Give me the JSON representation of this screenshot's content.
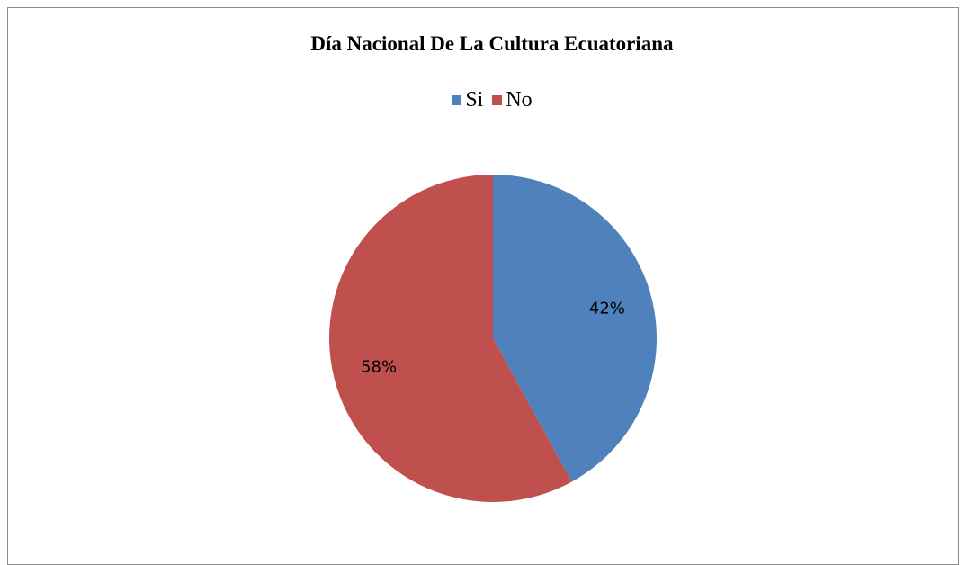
{
  "chart_data": {
    "type": "pie",
    "title": "Día Nacional De La Cultura Ecuatoriana",
    "categories": [
      "Si",
      "No"
    ],
    "values": [
      42,
      58
    ],
    "data_labels": [
      "42%",
      "58%"
    ],
    "colors": [
      "#4f81bd",
      "#c0504d"
    ],
    "legend_position": "top"
  }
}
